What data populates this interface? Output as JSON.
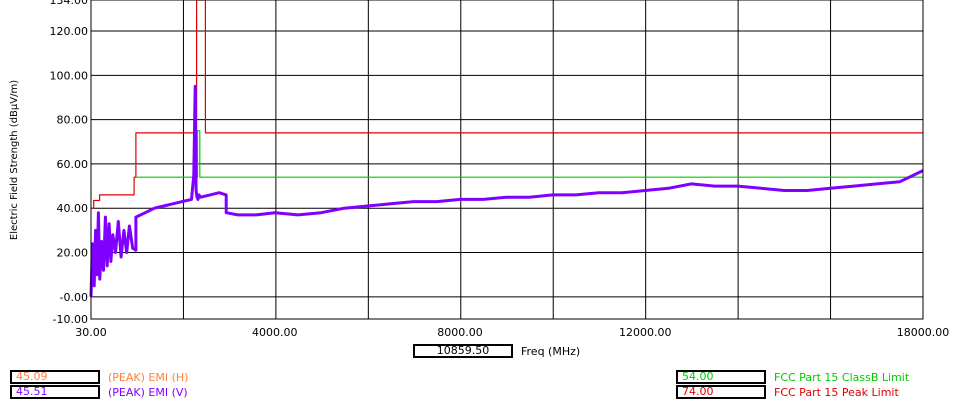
{
  "chart_data": {
    "type": "line",
    "ylabel": "Electric Field Strength (dBµV/m)",
    "xlabel": "Freq (MHz)",
    "xlim": [
      30,
      18000
    ],
    "ylim": [
      -10,
      134
    ],
    "x_ticks": [
      {
        "value": 30,
        "label": "30.00"
      },
      {
        "value": 4000,
        "label": "4000.00"
      },
      {
        "value": 8000,
        "label": "8000.00"
      },
      {
        "value": 12000,
        "label": "12000.00"
      },
      {
        "value": 18000,
        "label": "18000.00"
      }
    ],
    "y_ticks": [
      {
        "value": 134,
        "label": "134.00"
      },
      {
        "value": 120,
        "label": "120.00"
      },
      {
        "value": 100,
        "label": "100.00"
      },
      {
        "value": 80,
        "label": "80.00"
      },
      {
        "value": 60,
        "label": "60.00"
      },
      {
        "value": 40,
        "label": "40.00"
      },
      {
        "value": 20,
        "label": "20.00"
      },
      {
        "value": 0,
        "label": "-0.00"
      },
      {
        "value": -10,
        "label": "-10.00"
      }
    ],
    "grid": true,
    "series": [
      {
        "name": "FCC Part 15 Peak Limit",
        "color": "#e00000",
        "x": [
          30,
          88,
          88,
          216,
          216,
          960,
          960,
          1000,
          1000,
          2310,
          2310,
          2390,
          2390,
          2500,
          2500,
          18000
        ],
        "y": [
          40,
          40,
          43.5,
          43.5,
          46,
          46,
          54,
          54,
          74,
          74,
          134,
          134,
          134,
          134,
          74,
          74
        ]
      },
      {
        "name": "FCC Part 15 ClassB Limit",
        "color": "#00cc00",
        "x": [
          1000,
          2330,
          2330,
          2380,
          2380,
          18000
        ],
        "y": [
          54,
          54,
          75,
          75,
          54,
          54
        ]
      },
      {
        "name": "(PEAK) EMI (V)",
        "color": "#8000ff",
        "x": [
          30,
          60,
          100,
          130,
          160,
          190,
          220,
          260,
          300,
          340,
          380,
          420,
          460,
          500,
          560,
          620,
          680,
          740,
          800,
          860,
          930,
          1000,
          1000,
          1200,
          1400,
          1600,
          1800,
          2000,
          2200,
          2250,
          2280,
          2300,
          2320,
          2340,
          2360,
          2400,
          2600,
          2800,
          2950,
          2950,
          3200,
          3600,
          4000,
          4500,
          5000,
          5500,
          6000,
          6500,
          7000,
          7500,
          8000,
          8500,
          9000,
          9500,
          10000,
          10500,
          11000,
          11500,
          12000,
          12500,
          13000,
          13500,
          14000,
          14500,
          15000,
          15500,
          16000,
          16500,
          17000,
          17500,
          18000
        ],
        "y": [
          0,
          24,
          5,
          30,
          10,
          38,
          8,
          25,
          12,
          36,
          14,
          33,
          16,
          28,
          20,
          34,
          18,
          30,
          20,
          32,
          22,
          21,
          36,
          38,
          40,
          41,
          42,
          43,
          44,
          55,
          95,
          48,
          45,
          44,
          46,
          45,
          46,
          47,
          46,
          38,
          37,
          37,
          38,
          37,
          38,
          40,
          41,
          42,
          43,
          43,
          44,
          44,
          45,
          45,
          46,
          46,
          47,
          47,
          48,
          49,
          51,
          50,
          50,
          49,
          48,
          48,
          49,
          50,
          51,
          52,
          57
        ]
      }
    ],
    "cursor": {
      "value": "10859.50",
      "label": "Freq (MHz)"
    },
    "legend": [
      {
        "value": "45.09",
        "label": "(PEAK) EMI (H)",
        "color": "#ff8040"
      },
      {
        "value": "45.51",
        "label": "(PEAK) EMI (V)",
        "color": "#8000ff"
      },
      {
        "value": "54.00",
        "label": "FCC Part 15 ClassB Limit",
        "color": "#00cc00"
      },
      {
        "value": "74.00",
        "label": "FCC Part 15 Peak Limit",
        "color": "#e00000"
      }
    ]
  }
}
